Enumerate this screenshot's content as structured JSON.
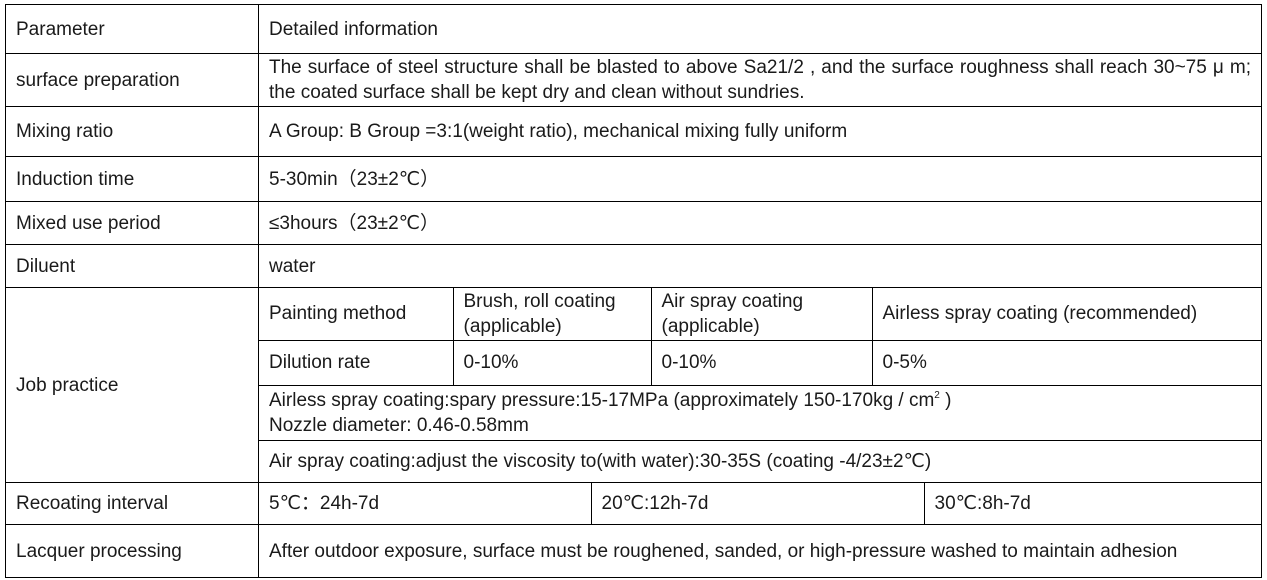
{
  "header": {
    "param": "Parameter",
    "detail": "Detailed information"
  },
  "rows": {
    "surface": {
      "label": "surface preparation",
      "value": "The surface of steel structure shall be blasted to above Sa21/2 , and the surface roughness shall reach 30~75 μ m; the coated surface shall be kept dry and clean without sundries."
    },
    "mixing": {
      "label": "Mixing ratio",
      "value": "A Group: B Group =3:1(weight ratio), mechanical mixing fully uniform"
    },
    "induction": {
      "label": "Induction time",
      "value": "5-30min（23±2℃）"
    },
    "mixed_use": {
      "label": "Mixed use period",
      "value": "≤3hours（23±2℃）"
    },
    "diluent": {
      "label": "Diluent",
      "value": "water"
    },
    "job": {
      "label": "Job practice",
      "method_header": [
        "Painting method",
        "Brush, roll coating (applicable)",
        "Air spray coating (applicable)",
        "Airless spray coating (recommended)"
      ],
      "dilution": [
        "Dilution rate",
        "0-10%",
        "0-10%",
        "0-5%"
      ],
      "airless_line1": "Airless spray coating:spary pressure:15-17MPa (approximately 150-170kg / cm",
      "airless_sup": "2",
      "airless_line1_end": " )",
      "airless_line2": "Nozzle diameter: 0.46-0.58mm",
      "air_spray": "Air spray coating:adjust the viscosity to(with water):30-35S (coating -4/23±2℃)"
    },
    "recoating": {
      "label": "Recoating interval",
      "values": [
        "5℃：24h-7d",
        "20℃:12h-7d",
        "30℃:8h-7d"
      ]
    },
    "lacquer": {
      "label": "Lacquer processing",
      "value": "After outdoor exposure, surface must be roughened, sanded, or high-pressure washed to maintain adhesion"
    }
  }
}
